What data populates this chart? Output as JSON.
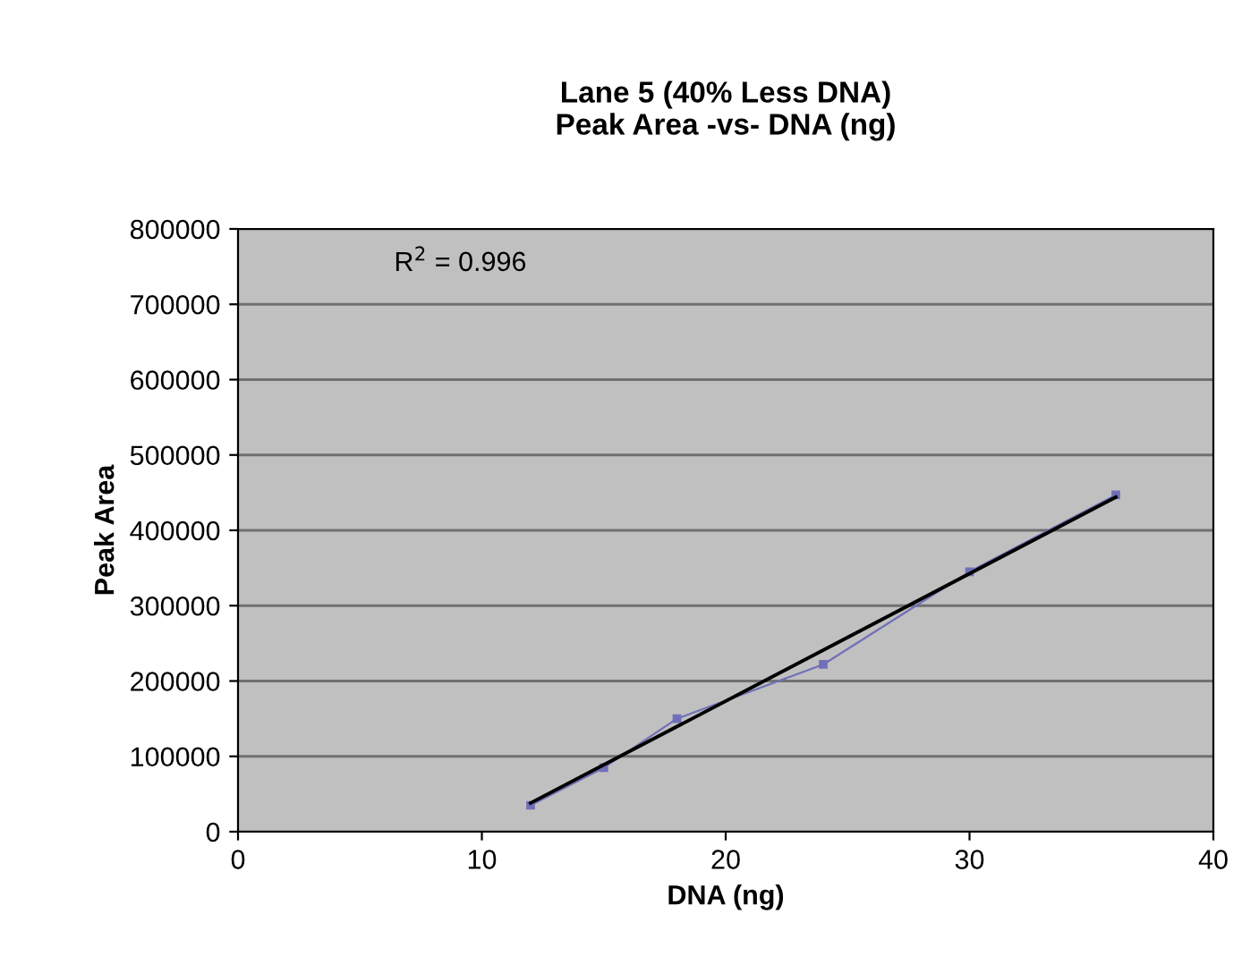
{
  "chart_data": {
    "type": "line",
    "title": "Lane 5 (40% Less DNA)\nPeak Area -vs- DNA (ng)",
    "xlabel": "DNA (ng)",
    "ylabel": "Peak Area",
    "xlim": [
      0,
      40
    ],
    "xticks": [
      0,
      10,
      20,
      30,
      40
    ],
    "ylim": [
      0,
      800000
    ],
    "yticks": [
      0,
      100000,
      200000,
      300000,
      400000,
      500000,
      600000,
      700000,
      800000
    ],
    "grid": "y",
    "annotations": [
      "R$^{2}$ = 0.996"
    ],
    "series": [
      {
        "color": "#7070b8",
        "marker": "square",
        "x": [
          12,
          15,
          18,
          24,
          30,
          36
        ],
        "values": [
          35000,
          85000,
          150000,
          222000,
          345000,
          447000
        ]
      },
      {
        "color": "#000000",
        "marker": "none",
        "x": [
          12,
          36
        ],
        "values": [
          38000,
          444000
        ]
      }
    ]
  }
}
